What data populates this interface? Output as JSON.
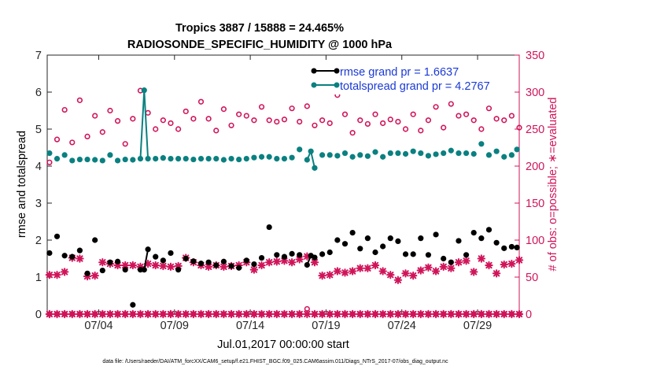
{
  "chart_data": {
    "type": "line",
    "title_line1": "Tropics 3887 / 15888 = 24.465%",
    "title_line2": "RADIOSONDE_SPECIFIC_HUMIDITY @ 1000 hPa",
    "xlabel": "Jul.01,2017 00:00:00 start",
    "ylabel_left": "rmse and totalspread",
    "ylabel_right": "# of obs: o=possible; ∗=evaluated",
    "footer": "data file: /Users/raeder/DAI/ATM_forcXX/CAM6_setup/f.e21.FHIST_BGC.f09_025.CAM6assim.011/Diags_NTrS_2017-07/obs_diag_output.nc",
    "xlim": [
      0.6,
      31.75
    ],
    "x_ticks": [
      4,
      9,
      14,
      19,
      24,
      29
    ],
    "x_tick_labels": [
      "07/04",
      "07/09",
      "07/14",
      "07/19",
      "07/24",
      "07/29"
    ],
    "ylim_left": [
      0,
      7
    ],
    "y_ticks_left": [
      0,
      1,
      2,
      3,
      4,
      5,
      6,
      7
    ],
    "ylim_right": [
      0,
      350
    ],
    "y_ticks_right": [
      0,
      50,
      100,
      150,
      200,
      250,
      300,
      350
    ],
    "colors": {
      "rmse": "#000000",
      "totalspread": "#0a8080",
      "obs": "#d0145a",
      "legend_text": "#1a3ad6"
    },
    "legend": [
      {
        "label": "rmse grand pr = 1.6637",
        "series": "rmse"
      },
      {
        "label": "totalspread grand pr = 4.2767",
        "series": "totalspread"
      }
    ],
    "series": [
      {
        "name": "rmse",
        "axis": "left",
        "x": [
          0.75,
          1.25,
          1.75,
          2.25,
          2.75,
          3.25,
          3.75,
          4.25,
          4.75,
          5.25,
          5.75,
          6.25,
          6.75,
          7.0,
          7.25,
          7.75,
          8.25,
          8.75,
          9.25,
          9.75,
          10.25,
          10.75,
          11.25,
          11.75,
          12.25,
          12.75,
          13.25,
          13.75,
          14.25,
          14.75,
          15.25,
          15.75,
          16.25,
          16.75,
          17.25,
          17.75,
          18.0,
          18.25,
          18.75,
          19.25,
          19.75,
          20.25,
          20.75,
          21.25,
          21.75,
          22.25,
          22.75,
          23.25,
          23.75,
          24.25,
          24.75,
          25.25,
          25.75,
          26.25,
          26.75,
          27.25,
          27.75,
          28.25,
          28.75,
          29.25,
          29.75,
          30.25,
          30.75,
          31.25,
          31.6
        ],
        "values": [
          1.65,
          2.1,
          1.58,
          1.55,
          1.72,
          1.1,
          2.0,
          1.18,
          1.4,
          1.42,
          1.2,
          0.25,
          1.2,
          1.2,
          1.75,
          1.55,
          1.45,
          1.65,
          1.2,
          1.5,
          1.43,
          1.37,
          1.4,
          1.32,
          1.42,
          1.3,
          1.25,
          1.45,
          1.35,
          1.52,
          2.35,
          1.6,
          1.55,
          1.63,
          1.6,
          1.33,
          1.58,
          1.53,
          1.62,
          1.67,
          2.0,
          1.9,
          2.2,
          1.77,
          2.05,
          1.67,
          1.83,
          2.05,
          1.97,
          1.62,
          1.62,
          2.05,
          1.6,
          2.15,
          1.5,
          1.4,
          1.98,
          1.6,
          2.2,
          2.05,
          2.28,
          1.93,
          1.78,
          1.82,
          1.8
        ]
      },
      {
        "name": "totalspread",
        "axis": "left",
        "x": [
          0.75,
          1.25,
          1.75,
          2.25,
          2.75,
          3.25,
          3.75,
          4.25,
          4.75,
          5.25,
          5.75,
          6.25,
          6.75,
          7.0,
          7.25,
          7.75,
          8.25,
          8.75,
          9.25,
          9.75,
          10.25,
          10.75,
          11.25,
          11.75,
          12.25,
          12.75,
          13.25,
          13.75,
          14.25,
          14.75,
          15.25,
          15.75,
          16.25,
          16.75,
          17.25,
          17.75,
          18.0,
          18.25,
          18.75,
          19.25,
          19.75,
          20.25,
          20.75,
          21.25,
          21.75,
          22.25,
          22.75,
          23.25,
          23.75,
          24.25,
          24.75,
          25.25,
          25.75,
          26.25,
          26.75,
          27.25,
          27.75,
          28.25,
          28.75,
          29.25,
          29.75,
          30.25,
          30.75,
          31.25,
          31.6
        ],
        "values": [
          4.35,
          4.2,
          4.3,
          4.15,
          4.18,
          4.18,
          4.17,
          4.15,
          4.3,
          4.15,
          4.18,
          4.17,
          4.2,
          6.05,
          4.2,
          4.2,
          4.22,
          4.2,
          4.2,
          4.2,
          4.18,
          4.2,
          4.2,
          4.2,
          4.17,
          4.2,
          4.18,
          4.2,
          4.23,
          4.25,
          4.25,
          4.2,
          4.2,
          4.23,
          4.45,
          4.17,
          4.4,
          3.95,
          4.3,
          4.3,
          4.28,
          4.35,
          4.25,
          4.3,
          4.27,
          4.38,
          4.25,
          4.35,
          4.35,
          4.33,
          4.4,
          4.35,
          4.28,
          4.32,
          4.35,
          4.42,
          4.35,
          4.35,
          4.33,
          4.6,
          4.3,
          4.4,
          4.25,
          4.3,
          4.45
        ]
      },
      {
        "name": "obs possible",
        "axis": "right",
        "x": [
          0.75,
          1.25,
          1.75,
          2.25,
          2.75,
          3.25,
          3.75,
          4.25,
          4.75,
          5.25,
          5.75,
          6.25,
          6.75,
          7.25,
          7.75,
          8.25,
          8.75,
          9.25,
          9.75,
          10.25,
          10.75,
          11.25,
          11.75,
          12.25,
          12.75,
          13.25,
          13.75,
          14.25,
          14.75,
          15.25,
          15.75,
          16.25,
          16.75,
          17.25,
          17.75,
          18.25,
          18.75,
          19.25,
          19.75,
          20.25,
          20.75,
          21.25,
          21.75,
          22.25,
          22.75,
          23.25,
          23.75,
          24.25,
          24.75,
          25.25,
          25.75,
          26.25,
          26.75,
          27.25,
          27.75,
          28.25,
          28.75,
          29.25,
          29.75,
          30.25,
          30.75,
          31.25,
          31.75
        ],
        "values": [
          205,
          236,
          276,
          232,
          289,
          240,
          268,
          246,
          275,
          261,
          230,
          264,
          302,
          272,
          250,
          262,
          258,
          250,
          274,
          264,
          287,
          264,
          248,
          277,
          255,
          270,
          268,
          262,
          280,
          262,
          260,
          263,
          278,
          260,
          281,
          255,
          262,
          258,
          296,
          270,
          245,
          262,
          257,
          270,
          258,
          263,
          260,
          250,
          270,
          248,
          262,
          280,
          252,
          284,
          268,
          270,
          262,
          250,
          278,
          264,
          262,
          268,
          252
        ]
      },
      {
        "name": "obs evaluated",
        "axis": "right",
        "x": [
          0.75,
          1.25,
          1.75,
          2.25,
          2.75,
          3.25,
          3.75,
          4.25,
          4.75,
          5.25,
          5.75,
          6.25,
          6.75,
          7.25,
          7.75,
          8.25,
          8.75,
          9.25,
          9.75,
          10.25,
          10.75,
          11.25,
          11.75,
          12.25,
          12.75,
          13.25,
          13.75,
          14.25,
          14.75,
          15.25,
          15.75,
          16.25,
          16.75,
          17.25,
          17.75,
          18.25,
          18.75,
          19.25,
          19.75,
          20.25,
          20.75,
          21.25,
          21.75,
          22.25,
          22.75,
          23.25,
          23.75,
          24.25,
          24.75,
          25.25,
          25.75,
          26.25,
          26.75,
          27.25,
          27.75,
          28.25,
          28.75,
          29.25,
          29.75,
          30.25,
          30.75,
          31.25,
          31.75
        ],
        "values": [
          53,
          53,
          57,
          76,
          75,
          51,
          52,
          70,
          68,
          66,
          66,
          66,
          64,
          68,
          66,
          65,
          64,
          65,
          76,
          70,
          66,
          64,
          66,
          64,
          65,
          66,
          70,
          60,
          66,
          70,
          71,
          72,
          70,
          74,
          78,
          70,
          52,
          53,
          58,
          56,
          58,
          62,
          62,
          66,
          58,
          53,
          46,
          55,
          52,
          59,
          63,
          58,
          64,
          62,
          70,
          72,
          57,
          75,
          66,
          55,
          67,
          68,
          73
        ]
      },
      {
        "name": "obs zero-level possible",
        "axis": "right",
        "x": [
          0.75,
          1.25,
          1.75,
          2.25,
          2.75,
          3.25,
          3.75,
          4.25,
          4.75,
          5.25,
          5.75,
          6.25,
          6.75,
          7.25,
          7.75,
          8.25,
          8.75,
          9.25,
          9.75,
          10.25,
          10.75,
          11.25,
          11.75,
          12.25,
          12.75,
          13.25,
          13.75,
          14.25,
          14.75,
          15.25,
          15.75,
          16.25,
          16.75,
          17.25,
          17.75,
          18.25,
          18.75,
          19.25,
          19.75,
          20.25,
          20.75,
          21.25,
          21.75,
          22.25,
          22.75,
          23.25,
          23.75,
          24.25,
          24.75,
          25.25,
          25.75,
          26.25,
          26.75,
          27.25,
          27.75,
          28.25,
          28.75,
          29.25,
          29.75,
          30.25,
          30.75,
          31.25,
          31.75
        ],
        "values": [
          0,
          0,
          0,
          0,
          0,
          0,
          0,
          0,
          0,
          0,
          0,
          0,
          0,
          0,
          0,
          0,
          0,
          0,
          0,
          0,
          0,
          0,
          0,
          0,
          0,
          0,
          0,
          0,
          0,
          0,
          0,
          0,
          0,
          0,
          7,
          0,
          0,
          0,
          0,
          0,
          0,
          0,
          0,
          0,
          0,
          0,
          0,
          0,
          0,
          0,
          0,
          0,
          0,
          0,
          0,
          0,
          0,
          0,
          0,
          0,
          0,
          0,
          0
        ]
      }
    ]
  }
}
